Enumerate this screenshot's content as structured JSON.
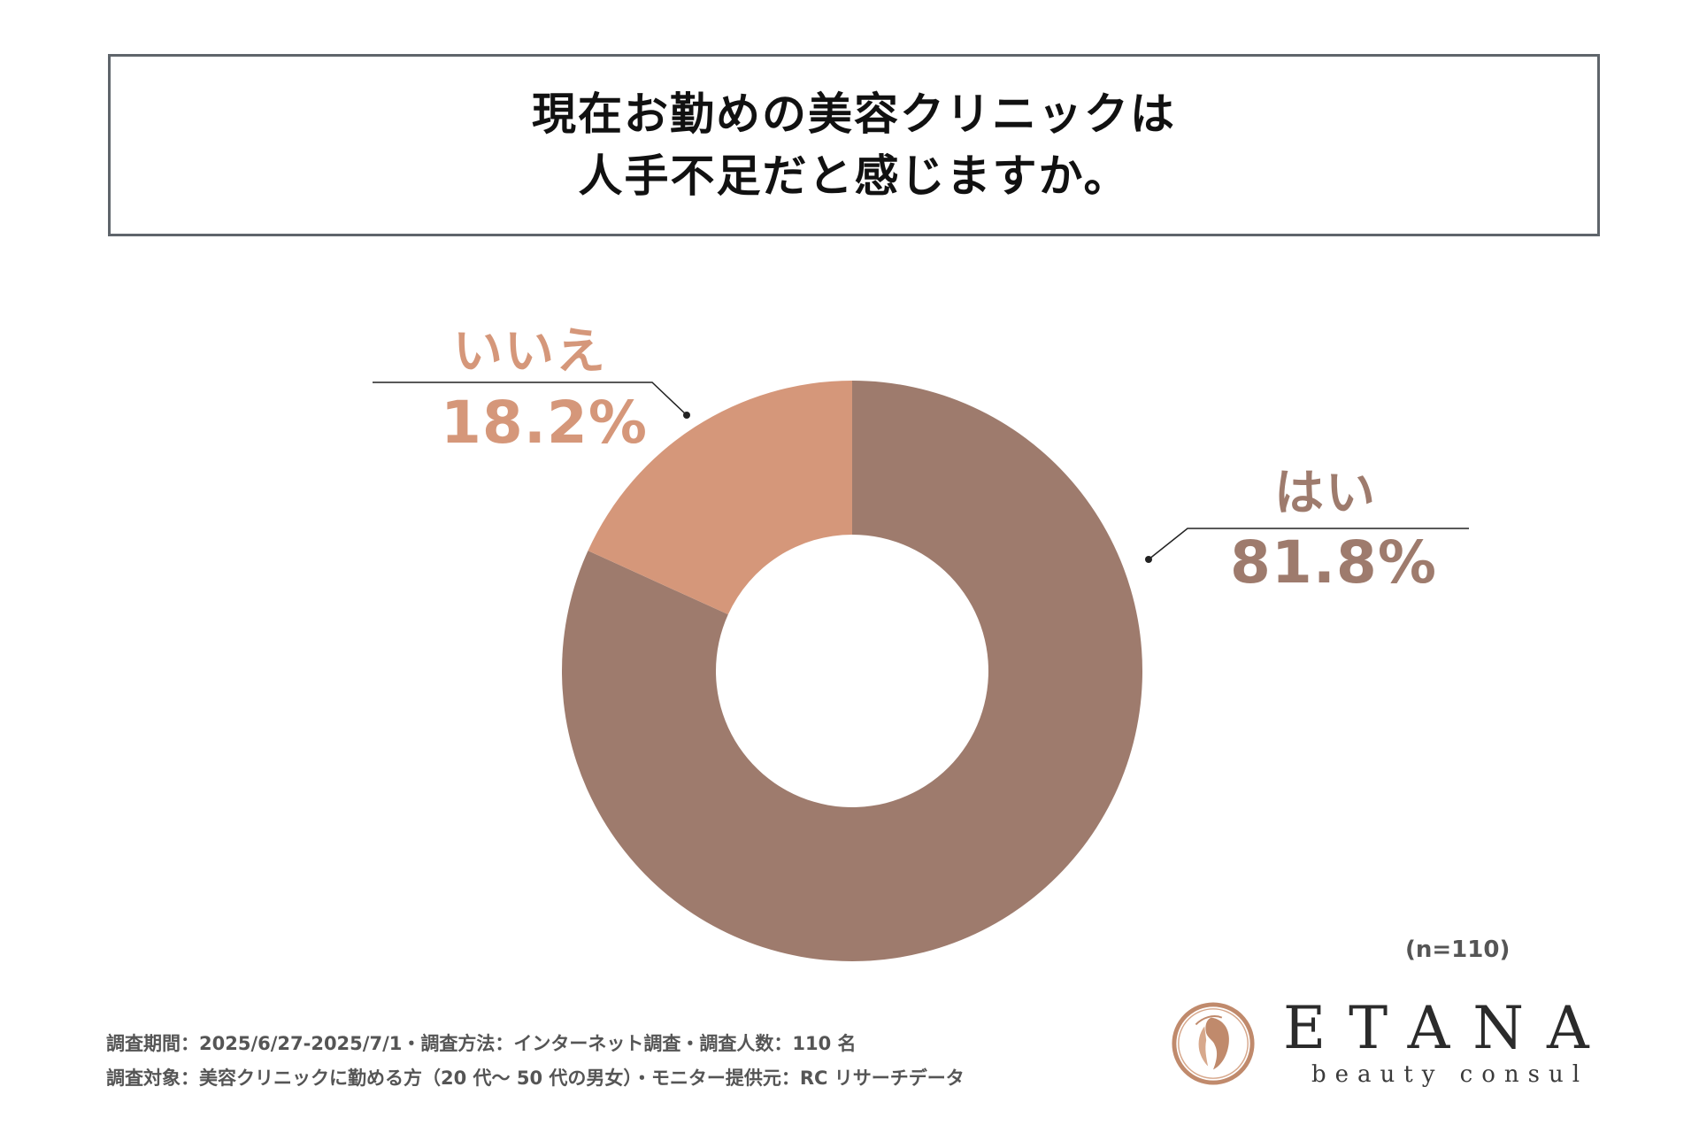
{
  "title": {
    "line1": "現在お勤めの美容クリニックは",
    "line2": "人手不足だと感じますか。"
  },
  "chart_data": {
    "type": "pie",
    "donut": true,
    "categories": [
      "はい",
      "いいえ"
    ],
    "values": [
      81.8,
      18.2
    ],
    "value_labels": [
      "81.8%",
      "18.2%"
    ],
    "colors": [
      "#9e7b6d",
      "#d5977a"
    ],
    "sample_size": "(n=110)"
  },
  "footnote": {
    "line1": "調査期間：2025/6/27-2025/7/1・調査方法：インターネット調査・調査人数：110 名",
    "line2": "調査対象：美容クリニックに勤める方（20 代〜 50 代の男女）・モニター提供元：RC リサーチデータ"
  },
  "logo": {
    "name": "ETANA",
    "sub": "beauty consul"
  }
}
